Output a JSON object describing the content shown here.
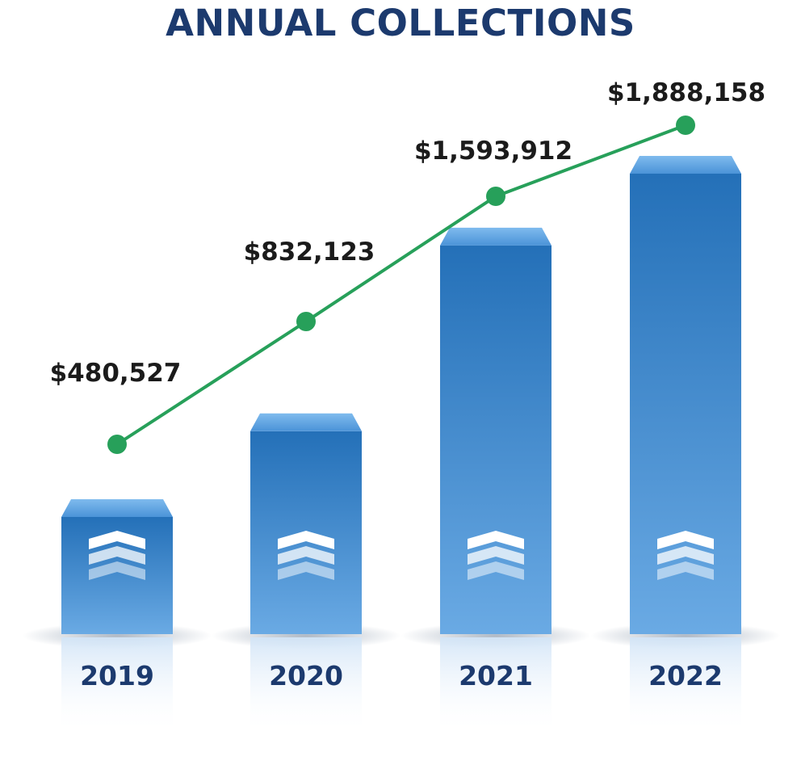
{
  "chart_data": {
    "type": "bar",
    "title": "ANNUAL COLLECTIONS",
    "categories": [
      "2019",
      "2020",
      "2021",
      "2022"
    ],
    "values": [
      480527,
      832123,
      1593912,
      1888158
    ],
    "value_labels": [
      "$480,527",
      "$832,123",
      "$1,593,912",
      "$1,888,158"
    ],
    "overlay": "line",
    "colors": {
      "bar_top": "#2470b8",
      "bar_bottom": "#6aaae4",
      "line": "#27a05a",
      "title": "#1c3a6e",
      "value_label": "#1b1b1b",
      "category_label": "#1c3a6e"
    },
    "bar_icon": "triple-chevron-up-icon",
    "grid": false,
    "legend": "none"
  }
}
